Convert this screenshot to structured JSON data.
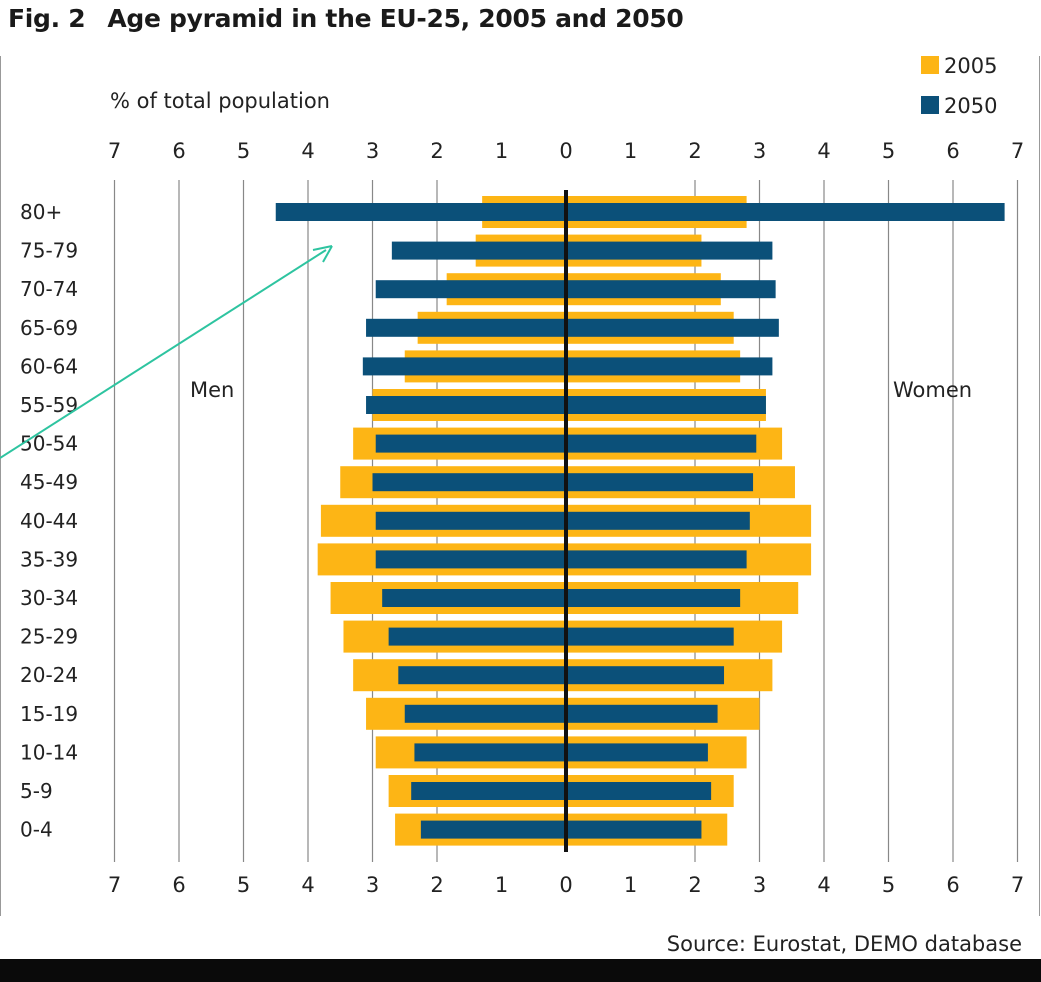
{
  "figure": {
    "number": "Fig. 2",
    "title": "Age pyramid in the EU-25, 2005 and 2050"
  },
  "colors": {
    "y2005": "#FDB515",
    "y2050": "#0B5079",
    "axis": "#111111",
    "grid": "#888888",
    "arrow": "#2EC4A0"
  },
  "chart_data": {
    "type": "bar",
    "orientation": "horizontal-pyramid",
    "title": "Age pyramid in the EU-25, 2005 and 2050",
    "unit_label": "% of total population",
    "left_label": "Men",
    "right_label": "Women",
    "source": "Source: Eurostat, DEMO database",
    "xlim": [
      -7,
      7
    ],
    "ticks": [
      "7",
      "6",
      "5",
      "4",
      "3",
      "2",
      "1",
      "0",
      "1",
      "2",
      "3",
      "4",
      "5",
      "6",
      "7"
    ],
    "legend": {
      "placement": "top-right",
      "entries": [
        "2005",
        "2050"
      ]
    },
    "categories": [
      "80+",
      "75-79",
      "70-74",
      "65-69",
      "60-64",
      "55-59",
      "50-54",
      "45-49",
      "40-44",
      "35-39",
      "30-34",
      "25-29",
      "20-24",
      "15-19",
      "10-14",
      "5-9",
      "0-4"
    ],
    "series": [
      {
        "name": "2005",
        "men": [
          1.3,
          1.4,
          1.85,
          2.3,
          2.5,
          3.0,
          3.3,
          3.5,
          3.8,
          3.85,
          3.65,
          3.45,
          3.3,
          3.1,
          2.95,
          2.75,
          2.65
        ],
        "women": [
          2.8,
          2.1,
          2.4,
          2.6,
          2.7,
          3.1,
          3.35,
          3.55,
          3.8,
          3.8,
          3.6,
          3.35,
          3.2,
          3.0,
          2.8,
          2.6,
          2.5
        ]
      },
      {
        "name": "2050",
        "men": [
          4.5,
          2.7,
          2.95,
          3.1,
          3.15,
          3.1,
          2.95,
          3.0,
          2.95,
          2.95,
          2.85,
          2.75,
          2.6,
          2.5,
          2.35,
          2.4,
          2.25
        ],
        "women": [
          6.8,
          3.2,
          3.25,
          3.3,
          3.2,
          3.1,
          2.95,
          2.9,
          2.85,
          2.8,
          2.7,
          2.6,
          2.45,
          2.35,
          2.2,
          2.25,
          2.1
        ]
      }
    ]
  }
}
